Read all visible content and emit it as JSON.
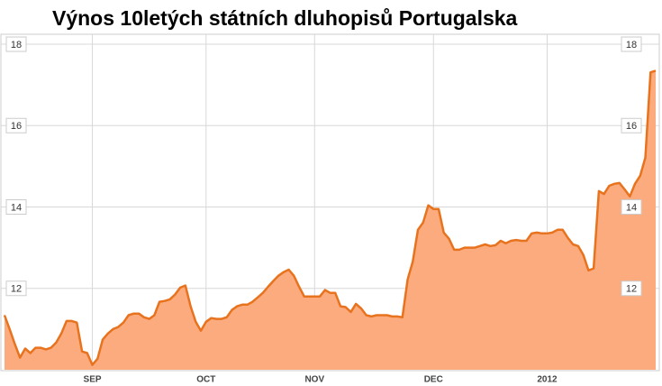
{
  "chart_data": {
    "type": "area",
    "title": "Výnos 10letých státních dluhopisů Portugalska",
    "categories": [
      null,
      null,
      null,
      null,
      null,
      null,
      null,
      null,
      null,
      null,
      null,
      null,
      null,
      null,
      null,
      null,
      null,
      "SEP",
      null,
      null,
      null,
      null,
      null,
      null,
      null,
      null,
      null,
      null,
      null,
      null,
      null,
      null,
      null,
      null,
      null,
      null,
      null,
      null,
      null,
      "OCT",
      null,
      null,
      null,
      null,
      null,
      null,
      null,
      null,
      null,
      null,
      null,
      null,
      null,
      null,
      null,
      null,
      null,
      null,
      null,
      null,
      "NOV",
      null,
      null,
      null,
      null,
      null,
      null,
      null,
      null,
      null,
      null,
      null,
      null,
      null,
      null,
      null,
      null,
      null,
      null,
      null,
      null,
      null,
      null,
      "DEC",
      null,
      null,
      null,
      null,
      null,
      null,
      null,
      null,
      null,
      null,
      null,
      null,
      null,
      null,
      null,
      null,
      null,
      null,
      null,
      null,
      null,
      "2012",
      null,
      null,
      null,
      null,
      null,
      null,
      null,
      null,
      null,
      null,
      null,
      null,
      null,
      null,
      null,
      null,
      null,
      null,
      null,
      null,
      null
    ],
    "values": [
      11.34,
      11.0,
      10.63,
      10.3,
      10.52,
      10.41,
      10.54,
      10.54,
      10.5,
      10.54,
      10.67,
      10.89,
      11.2,
      11.2,
      11.16,
      10.45,
      10.41,
      10.12,
      10.27,
      10.74,
      10.89,
      11.0,
      11.05,
      11.16,
      11.34,
      11.38,
      11.38,
      11.29,
      11.25,
      11.34,
      11.67,
      11.69,
      11.73,
      11.85,
      12.02,
      12.07,
      11.56,
      11.18,
      10.96,
      11.18,
      11.27,
      11.25,
      11.25,
      11.29,
      11.47,
      11.56,
      11.6,
      11.6,
      11.67,
      11.78,
      11.89,
      12.04,
      12.18,
      12.31,
      12.4,
      12.46,
      12.31,
      12.04,
      11.8,
      11.8,
      11.8,
      11.8,
      11.96,
      11.89,
      11.89,
      11.56,
      11.54,
      11.42,
      11.62,
      11.51,
      11.34,
      11.31,
      11.34,
      11.34,
      11.34,
      11.31,
      11.31,
      11.29,
      12.22,
      12.66,
      13.44,
      13.62,
      14.04,
      13.95,
      13.95,
      13.37,
      13.22,
      12.95,
      12.95,
      13.0,
      13.0,
      13.0,
      13.04,
      13.08,
      13.04,
      13.06,
      13.17,
      13.11,
      13.17,
      13.19,
      13.17,
      13.17,
      13.35,
      13.37,
      13.35,
      13.35,
      13.37,
      13.44,
      13.44,
      13.24,
      13.08,
      13.04,
      12.82,
      12.44,
      12.49,
      14.39,
      14.32,
      14.52,
      14.57,
      14.59,
      14.43,
      14.26,
      14.57,
      14.77,
      15.21,
      17.31,
      17.35
    ],
    "color": "#fbab7e",
    "line_color": "#e8731e",
    "ylim": [
      10,
      18.2
    ],
    "yticks": [
      12,
      14,
      16,
      18
    ],
    "grid": true
  }
}
